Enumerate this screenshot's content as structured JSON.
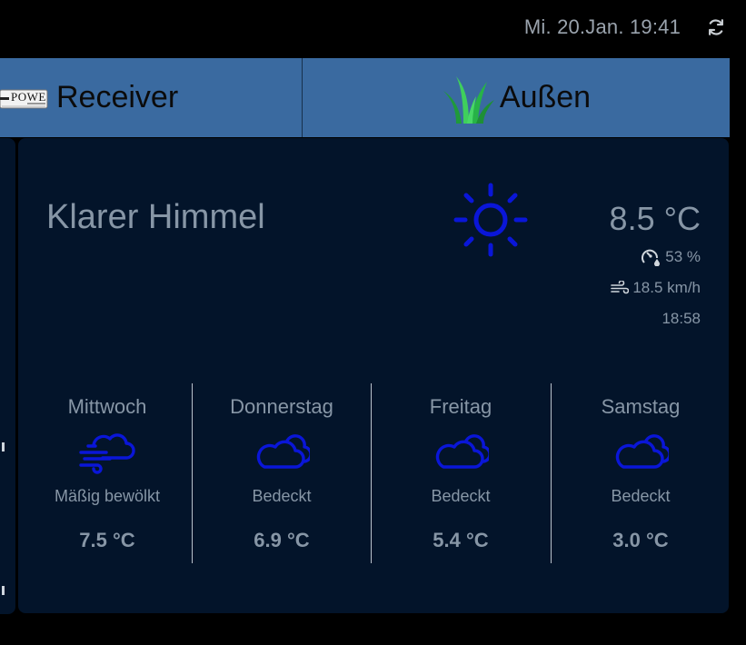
{
  "header": {
    "datetime": "Mi. 20.Jan. 19:41",
    "refresh_icon": "refresh-icon"
  },
  "tabs": [
    {
      "label": "Receiver",
      "icon": "receiver-icon"
    },
    {
      "label": "Außen",
      "icon": "grass-icon"
    }
  ],
  "receiver_icon_text": "POWE",
  "weather": {
    "condition": "Klarer Himmel",
    "icon": "sun-icon",
    "temperature": "8.5 °C",
    "humidity": "53 %",
    "wind": "18.5 km/h",
    "time": "18:58"
  },
  "forecast": [
    {
      "day": "Mittwoch",
      "icon": "wind-cloud-icon",
      "desc": "Mäßig bewölkt",
      "temp": "7.5 °C"
    },
    {
      "day": "Donnerstag",
      "icon": "cloud-icon",
      "desc": "Bedeckt",
      "temp": "6.9 °C"
    },
    {
      "day": "Freitag",
      "icon": "cloud-icon",
      "desc": "Bedeckt",
      "temp": "5.4 °C"
    },
    {
      "day": "Samstag",
      "icon": "cloud-icon",
      "desc": "Bedeckt",
      "temp": "3.0 °C"
    }
  ],
  "colors": {
    "background": "#000000",
    "tab_bar": "#3a6aa0",
    "card": "#03142a",
    "text": "#8796a6",
    "icon_blue": "#0a16d8",
    "grass_green": "#2eb84a"
  }
}
